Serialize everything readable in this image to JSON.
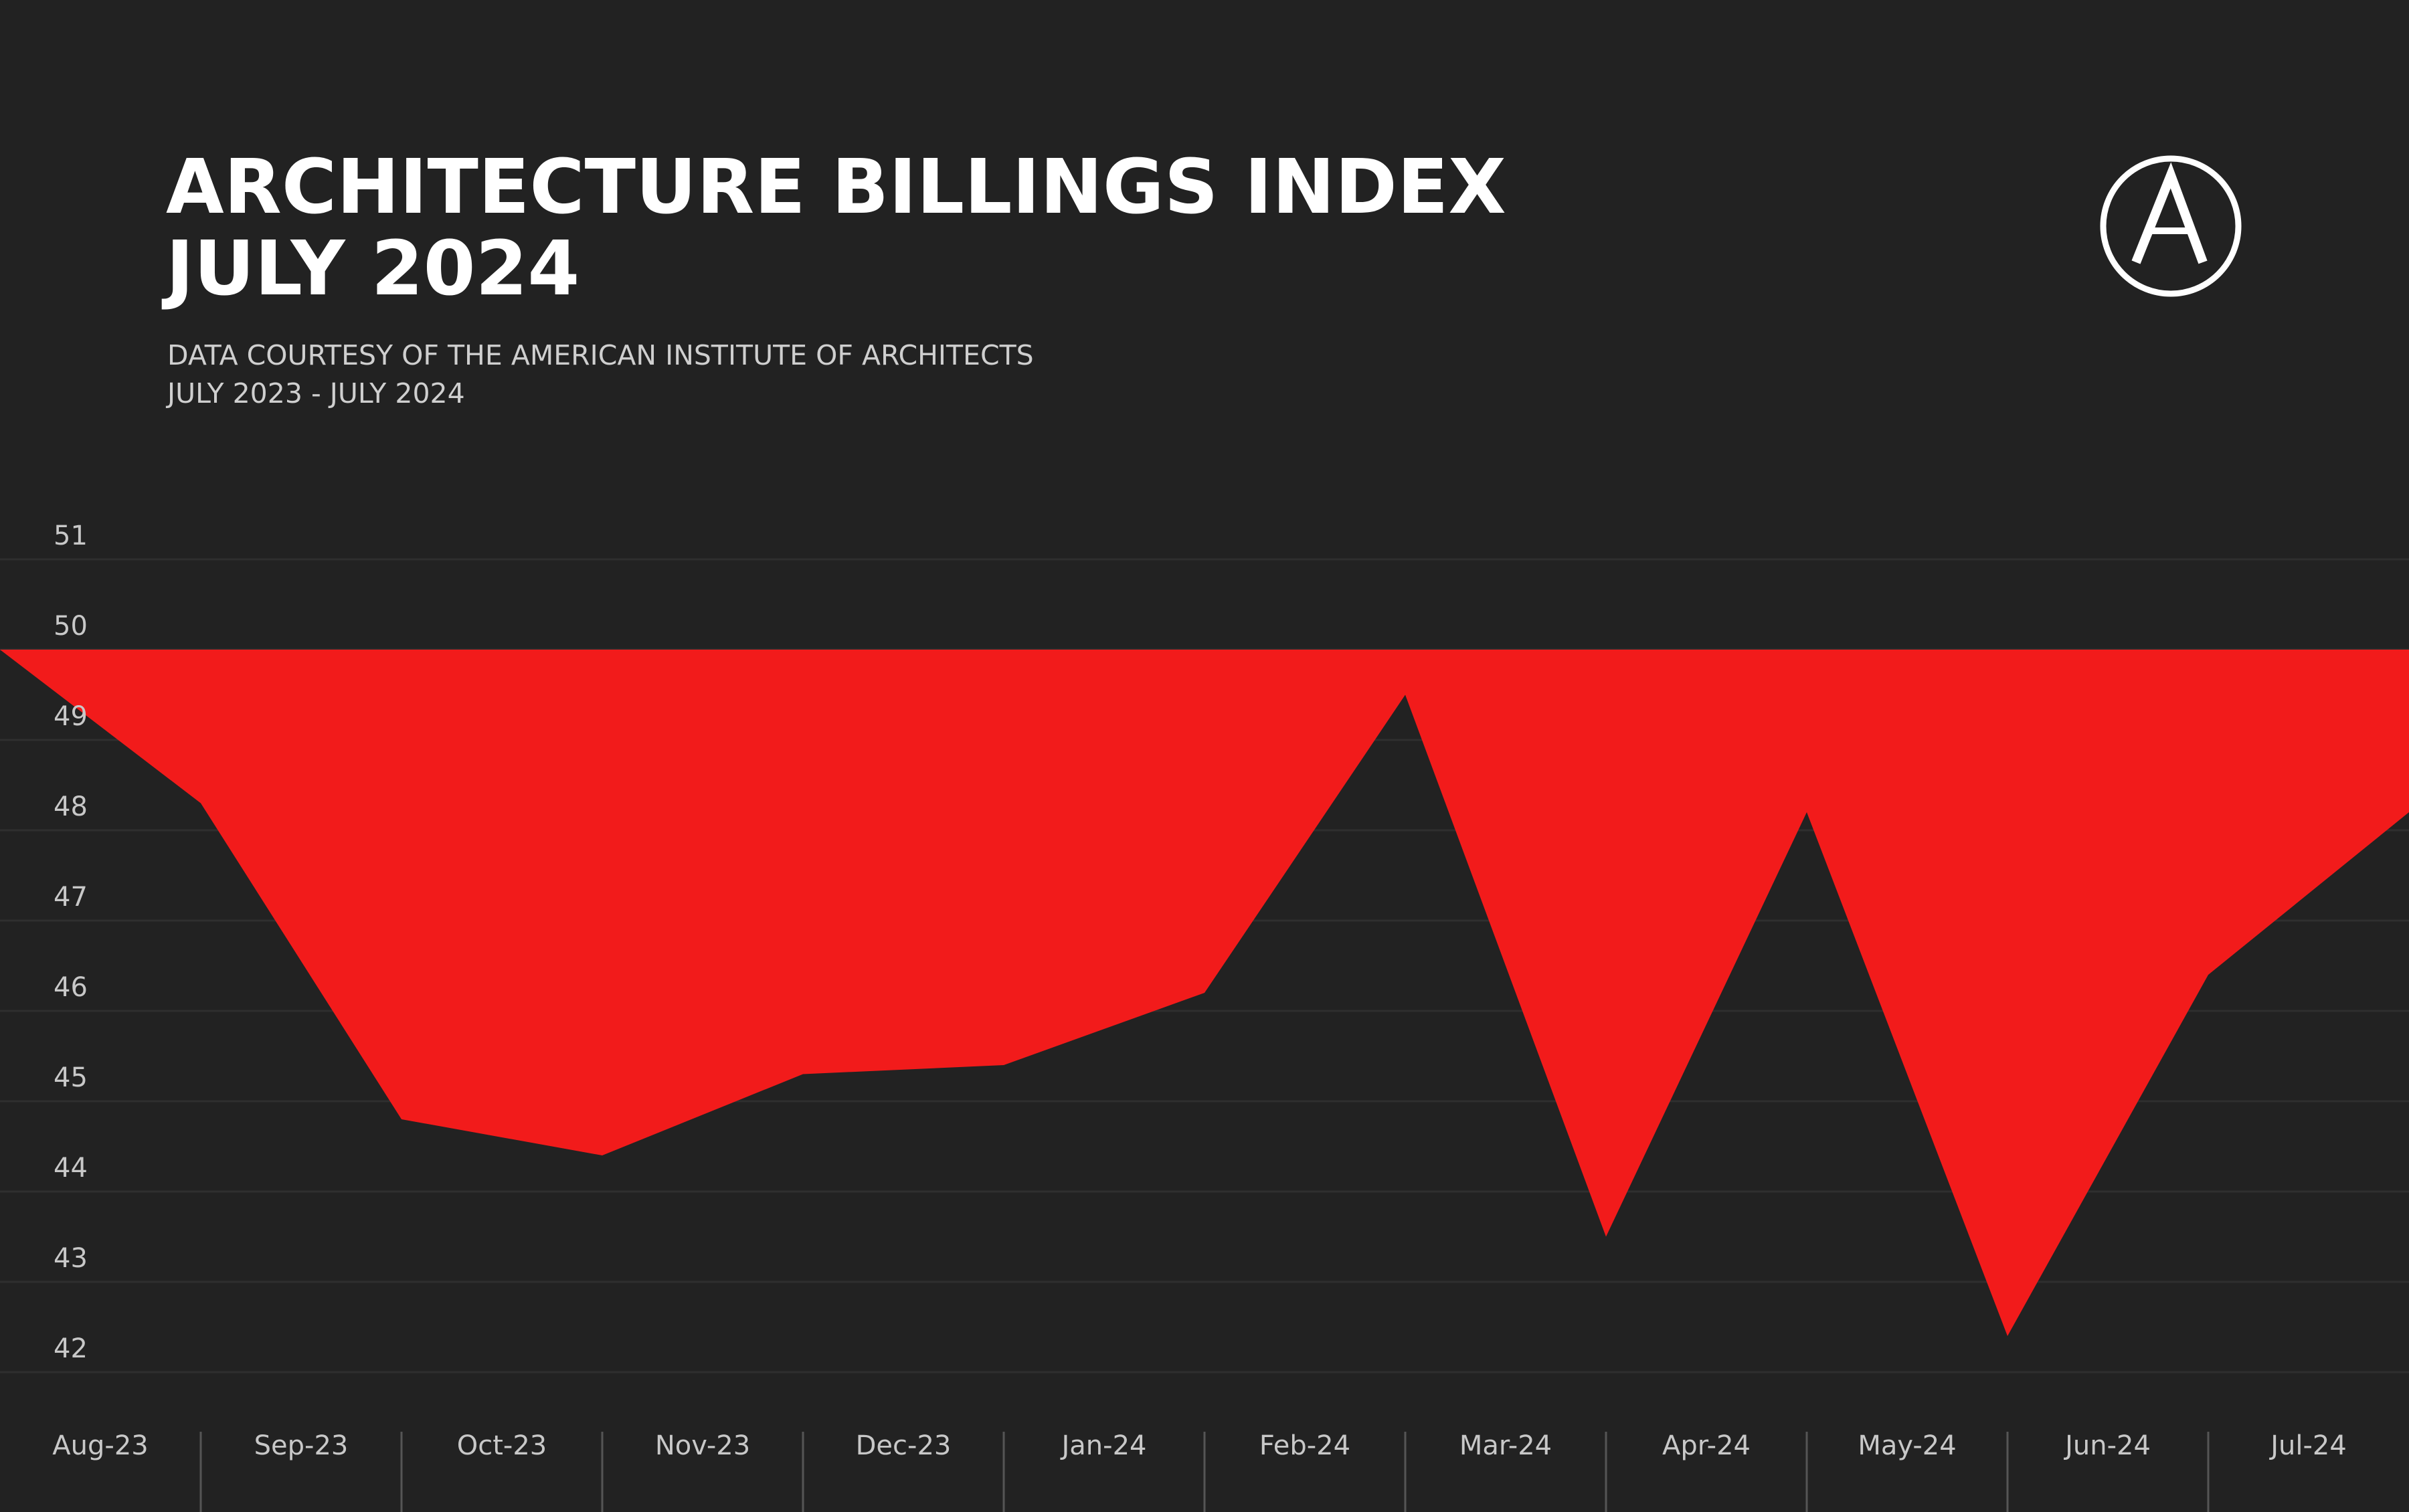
{
  "chart_data": {
    "type": "area",
    "title": [
      "ARCHITECTURE BILLINGS INDEX",
      "JULY 2024"
    ],
    "subtitle": [
      "DATA COURTESY OF THE AMERICAN INSTITUTE OF ARCHITECTS",
      "JULY 2023 - JULY 2024"
    ],
    "categories": [
      null,
      "Aug-23",
      "Sep-23",
      "Oct-23",
      "Nov-23",
      "Dec-23",
      "Jan-24",
      "Feb-24",
      "Mar-24",
      "Apr-24",
      "May-24",
      "Jun-24",
      "Jul-24"
    ],
    "values": [
      50.0,
      48.3,
      44.8,
      44.4,
      45.3,
      45.4,
      46.2,
      49.5,
      43.5,
      48.2,
      42.4,
      46.4,
      48.2
    ],
    "baseline": 50,
    "color": "#f21b1b",
    "ylim": [
      41.5,
      51.5
    ],
    "yticks": [
      42,
      43,
      44,
      45,
      46,
      47,
      48,
      49,
      50,
      51
    ],
    "grid": true
  }
}
